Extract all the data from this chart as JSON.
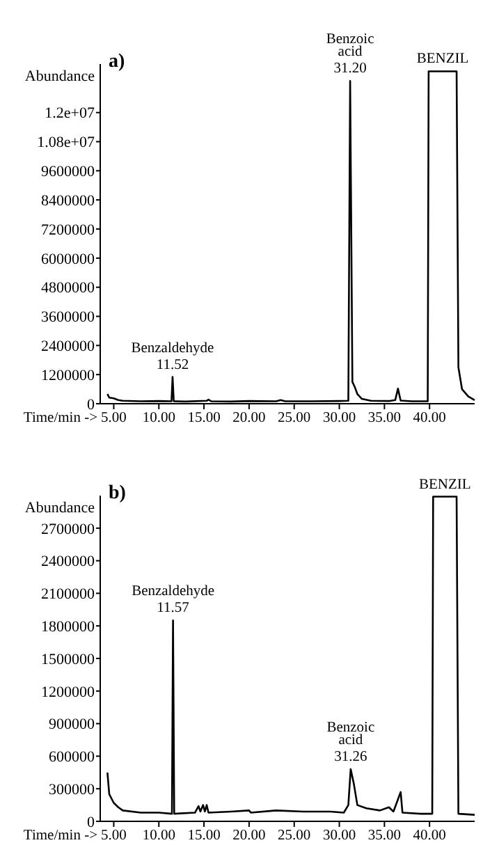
{
  "chart_data": [
    {
      "type": "line",
      "title": "a)",
      "xlabel": "Time/min ->",
      "ylabel": "Abundance",
      "xlim": [
        3.5,
        45
      ],
      "ylim": [
        0,
        14000000
      ],
      "xticks": [
        {
          "value": 5,
          "label": "5.00"
        },
        {
          "value": 10,
          "label": "10.00"
        },
        {
          "value": 15,
          "label": "15.00"
        },
        {
          "value": 20,
          "label": "20.00"
        },
        {
          "value": 25,
          "label": "25.00"
        },
        {
          "value": 30,
          "label": "30.00"
        },
        {
          "value": 35,
          "label": "35.00"
        },
        {
          "value": 40,
          "label": "40.00"
        }
      ],
      "yticks": [
        0,
        1200000,
        2400000,
        3600000,
        4800000,
        6000000,
        7200000,
        8400000,
        9600000,
        {
          "value": 10800000,
          "label": "1.08e+07"
        },
        {
          "value": 12000000,
          "label": "1.2e+07"
        }
      ],
      "grid": false,
      "marker": "none",
      "line_style": "solid",
      "annotations": [
        {
          "text": "Benzaldehyde\n11.52",
          "x": 11.52,
          "y": 1100000
        },
        {
          "text": "Benzoic\nacid\n31.20",
          "x": 31.2,
          "y": 13300000
        },
        {
          "text": "BENZIL",
          "x": 41.45,
          "y": 13700000
        }
      ],
      "series": [
        {
          "color": "#000000",
          "x": [
            4.3,
            4.5,
            5,
            5.5,
            6,
            8,
            10,
            11.4,
            11.52,
            11.65,
            13,
            15.3,
            15.5,
            15.8,
            18,
            20,
            23,
            23.5,
            24,
            27,
            30,
            31.0,
            31.2,
            31.45,
            31.7,
            32,
            32.5,
            33.5,
            35.5,
            36.2,
            36.5,
            36.8,
            38,
            39.8,
            39.9,
            43.0,
            43.2,
            43.6,
            44.3,
            45
          ],
          "values": [
            400000,
            250000,
            220000,
            150000,
            120000,
            100000,
            110000,
            100000,
            1100000,
            100000,
            90000,
            120000,
            170000,
            100000,
            90000,
            110000,
            100000,
            150000,
            100000,
            100000,
            110000,
            120000,
            13300000,
            900000,
            700000,
            400000,
            200000,
            120000,
            110000,
            150000,
            620000,
            130000,
            100000,
            100000,
            13700000,
            13700000,
            1500000,
            600000,
            300000,
            150000
          ]
        }
      ]
    },
    {
      "type": "line",
      "title": "b)",
      "xlabel": "Time/min ->",
      "ylabel": "Abundance",
      "xlim": [
        3.5,
        45
      ],
      "ylim": [
        0,
        3000000
      ],
      "xticks": [
        {
          "value": 5,
          "label": "5.00"
        },
        {
          "value": 10,
          "label": "10.00"
        },
        {
          "value": 15,
          "label": "15.00"
        },
        {
          "value": 20,
          "label": "20.00"
        },
        {
          "value": 25,
          "label": "25.00"
        },
        {
          "value": 30,
          "label": "30.00"
        },
        {
          "value": 35,
          "label": "35.00"
        },
        {
          "value": 40,
          "label": "40.00"
        }
      ],
      "yticks": [
        0,
        300000,
        600000,
        900000,
        1200000,
        1500000,
        1800000,
        2100000,
        2400000,
        2700000
      ],
      "grid": false,
      "marker": "none",
      "line_style": "solid",
      "annotations": [
        {
          "text": "Benzaldehyde\n11.57",
          "x": 11.57,
          "y": 1850000
        },
        {
          "text": "Benzoic\nacid\n31.26",
          "x": 31.26,
          "y": 480000
        },
        {
          "text": "BENZIL",
          "x": 41.7,
          "y": 2990000
        }
      ],
      "series": [
        {
          "color": "#000000",
          "x": [
            4.3,
            4.5,
            5,
            5.5,
            6,
            8,
            10,
            11.45,
            11.57,
            11.7,
            14,
            14.4,
            14.6,
            14.9,
            15.1,
            15.3,
            15.5,
            18,
            20,
            20.2,
            23,
            26,
            29,
            30.5,
            31,
            31.26,
            31.6,
            32,
            33,
            34.5,
            35.5,
            36,
            36.8,
            37,
            39,
            40.3,
            40.4,
            43.0,
            43.2,
            45
          ],
          "values": [
            450000,
            250000,
            170000,
            130000,
            100000,
            80000,
            80000,
            70000,
            1850000,
            70000,
            80000,
            140000,
            90000,
            150000,
            90000,
            150000,
            80000,
            90000,
            100000,
            80000,
            100000,
            90000,
            90000,
            80000,
            150000,
            480000,
            350000,
            150000,
            120000,
            100000,
            130000,
            90000,
            270000,
            80000,
            70000,
            70000,
            2990000,
            2990000,
            70000,
            60000
          ]
        }
      ]
    }
  ]
}
